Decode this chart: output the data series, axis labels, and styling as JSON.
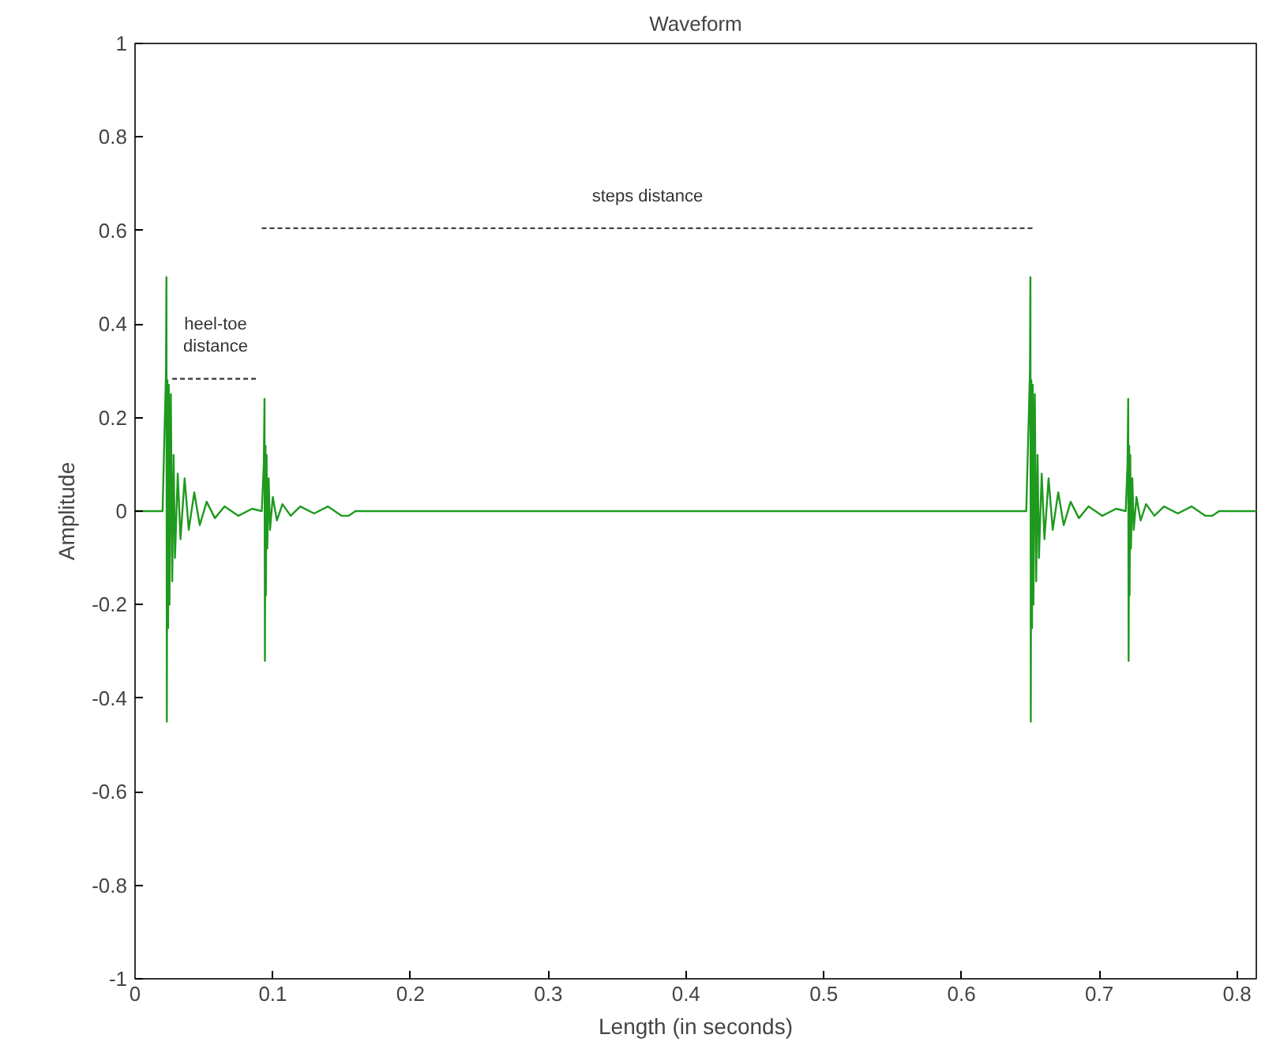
{
  "chart_data": {
    "type": "line",
    "title": "Waveform",
    "xlabel": "Length (in seconds)",
    "ylabel": "Amplitude",
    "xlim": [
      0,
      0.814
    ],
    "ylim": [
      -1,
      1
    ],
    "xticks": [
      0,
      0.1,
      0.2,
      0.3,
      0.4,
      0.5,
      0.6,
      0.7,
      0.8
    ],
    "yticks": [
      -1,
      -0.8,
      -0.6,
      -0.4,
      -0.2,
      0,
      0.2,
      0.4,
      0.6,
      0.8,
      1
    ],
    "series": [
      {
        "color": "#1e9a1e",
        "x": [
          0,
          0.02,
          0.0225,
          0.0228,
          0.0231,
          0.0235,
          0.024,
          0.0245,
          0.025,
          0.026,
          0.027,
          0.028,
          0.029,
          0.031,
          0.033,
          0.036,
          0.039,
          0.043,
          0.047,
          0.052,
          0.058,
          0.065,
          0.075,
          0.085,
          0.092,
          0.0935,
          0.094,
          0.0943,
          0.0947,
          0.095,
          0.0955,
          0.096,
          0.097,
          0.098,
          0.1,
          0.103,
          0.107,
          0.113,
          0.12,
          0.13,
          0.14,
          0.15,
          0.155,
          0.16,
          0.64,
          0.647,
          0.6497,
          0.65,
          0.6503,
          0.6507,
          0.6512,
          0.6517,
          0.6522,
          0.6532,
          0.6542,
          0.6552,
          0.6562,
          0.6582,
          0.6602,
          0.6632,
          0.6662,
          0.6702,
          0.6742,
          0.6792,
          0.6852,
          0.6922,
          0.7022,
          0.7122,
          0.7192,
          0.7205,
          0.721,
          0.7213,
          0.7217,
          0.722,
          0.7225,
          0.723,
          0.724,
          0.725,
          0.727,
          0.73,
          0.734,
          0.74,
          0.747,
          0.757,
          0.767,
          0.777,
          0.782,
          0.787,
          0.814
        ],
        "values": [
          0,
          0,
          0.3,
          0.5,
          -0.45,
          0.28,
          -0.25,
          0.27,
          -0.2,
          0.25,
          -0.15,
          0.12,
          -0.1,
          0.08,
          -0.06,
          0.07,
          -0.04,
          0.04,
          -0.03,
          0.02,
          -0.015,
          0.01,
          -0.01,
          0.005,
          0,
          0.1,
          0.24,
          -0.32,
          0.14,
          -0.18,
          0.12,
          -0.08,
          0.07,
          -0.04,
          0.03,
          -0.02,
          0.015,
          -0.01,
          0.01,
          -0.005,
          0.01,
          -0.01,
          -0.01,
          0,
          0,
          0,
          0.3,
          0.5,
          -0.45,
          0.28,
          -0.25,
          0.27,
          -0.2,
          0.25,
          -0.15,
          0.12,
          -0.1,
          0.08,
          -0.06,
          0.07,
          -0.04,
          0.04,
          -0.03,
          0.02,
          -0.015,
          0.01,
          -0.01,
          0.005,
          0,
          0.1,
          0.24,
          -0.32,
          0.14,
          -0.18,
          0.12,
          -0.08,
          0.07,
          -0.04,
          0.03,
          -0.02,
          0.015,
          -0.01,
          0.01,
          -0.005,
          0.01,
          -0.01,
          -0.01,
          0,
          0
        ]
      },
      {
        "type": "line",
        "color": "#444444",
        "line_style": "dashed",
        "x": [
          0.092,
          0.652
        ],
        "values": [
          0.605,
          0.605
        ]
      },
      {
        "type": "line",
        "color": "#444444",
        "line_style": "dashed",
        "x": [
          0.027,
          0.09
        ],
        "values": [
          0.283,
          0.283
        ]
      }
    ],
    "annotations": [
      "steps distance",
      "heel-toe\ndistance"
    ]
  }
}
